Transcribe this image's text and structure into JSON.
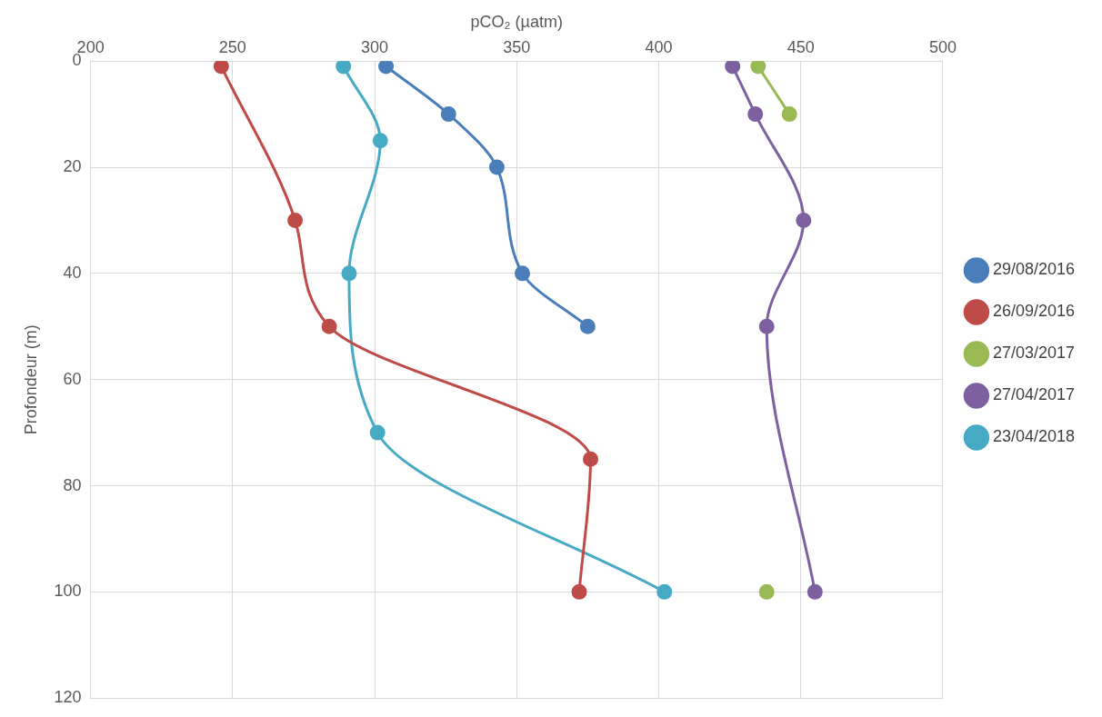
{
  "chart_data": {
    "type": "line",
    "xlabel": "pCO₂ (µatm)",
    "ylabel": "Profondeur (m)",
    "xlim": [
      200,
      500
    ],
    "xticks": [
      200,
      250,
      300,
      350,
      400,
      450,
      500
    ],
    "ylim": [
      120,
      0
    ],
    "yticks": [
      0,
      20,
      40,
      60,
      80,
      100,
      120
    ],
    "grid": true,
    "legend": "right",
    "marker": "circle",
    "line_style": "solid",
    "series": [
      {
        "name": "29/08/2016",
        "color": "#4a7ebb",
        "x": [
          304,
          326,
          343,
          352,
          375
        ],
        "values": [
          1,
          10,
          20,
          40,
          50
        ]
      },
      {
        "name": "26/09/2016",
        "color": "#be4b48",
        "x": [
          246,
          272,
          284,
          376,
          372
        ],
        "values": [
          1,
          30,
          50,
          75,
          100
        ]
      },
      {
        "name": "27/03/2017",
        "color": "#98b954",
        "x": [
          435,
          446,
          null,
          438
        ],
        "values": [
          1,
          10,
          null,
          100
        ]
      },
      {
        "name": "27/04/2017",
        "color": "#7d60a0",
        "x": [
          426,
          434,
          451,
          438,
          455
        ],
        "values": [
          1,
          10,
          30,
          50,
          100
        ]
      },
      {
        "name": "23/04/2018",
        "color": "#46aac5",
        "x": [
          289,
          302,
          291,
          301,
          402
        ],
        "values": [
          1,
          15,
          40,
          70,
          100
        ]
      }
    ]
  }
}
